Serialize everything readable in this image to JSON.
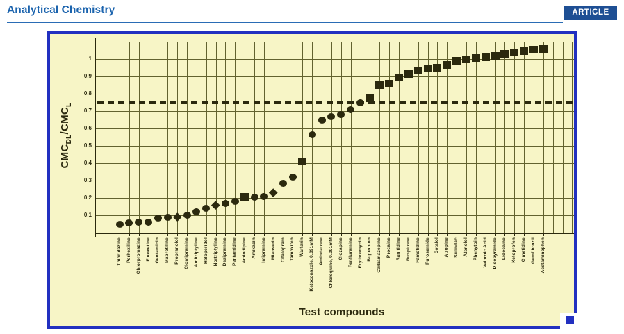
{
  "header": {
    "journal_title": "Analytical Chemistry",
    "badge_label": "ARTICLE"
  },
  "figure": {
    "y_axis_title": {
      "base1": "CMC",
      "sub1": "DL",
      "base2": "/CMC",
      "sub2": "L"
    },
    "x_axis_title": "Test compounds",
    "y_tick_labels": [
      "1",
      "0.9",
      "0.8",
      "0.7",
      "0.6",
      "0.5",
      "0.4",
      "0.3",
      "0.2",
      "0.1"
    ]
  },
  "colors": {
    "header_blue": "#1c64ae",
    "badge_bg": "#1e4f94",
    "figure_border": "#2230c0",
    "figure_bg": "#f7f5c6",
    "ink": "#2b290e",
    "grid": "#62622f"
  },
  "chart_data": {
    "type": "scatter",
    "title": "",
    "xlabel": "Test compounds",
    "ylabel": "CMC_DL/CMC_L",
    "ylim": [
      0,
      1.1
    ],
    "y_tick_step": 0.1,
    "grid": true,
    "threshold_line": {
      "y": 0.75,
      "style": "dashed"
    },
    "points": [
      {
        "label": "Thioridazine",
        "value": 0.05,
        "marker": "circle"
      },
      {
        "label": "Perhexiline",
        "value": 0.055,
        "marker": "circle"
      },
      {
        "label": "Chlorpromazine",
        "value": 0.06,
        "marker": "circle"
      },
      {
        "label": "Fluoxetine",
        "value": 0.06,
        "marker": "circle"
      },
      {
        "label": "Gentamicin",
        "value": 0.085,
        "marker": "circle"
      },
      {
        "label": "Maprotiline",
        "value": 0.088,
        "marker": "circle"
      },
      {
        "label": "Propranolol",
        "value": 0.09,
        "marker": "diamond"
      },
      {
        "label": "Clomipramine",
        "value": 0.1,
        "marker": "circle"
      },
      {
        "label": "Amitriptyline",
        "value": 0.12,
        "marker": "circle"
      },
      {
        "label": "Haloperidol",
        "value": 0.14,
        "marker": "circle"
      },
      {
        "label": "Nortriptyline",
        "value": 0.16,
        "marker": "diamond"
      },
      {
        "label": "Desipramine",
        "value": 0.17,
        "marker": "circle"
      },
      {
        "label": "Pentamidine",
        "value": 0.18,
        "marker": "circle"
      },
      {
        "label": "Amlodipine",
        "value": 0.205,
        "marker": "square"
      },
      {
        "label": "Amikacin",
        "value": 0.205,
        "marker": "circle"
      },
      {
        "label": "Imipramine",
        "value": 0.21,
        "marker": "circle"
      },
      {
        "label": "Mianserin",
        "value": 0.23,
        "marker": "diamond"
      },
      {
        "label": "Citalopram",
        "value": 0.285,
        "marker": "circle"
      },
      {
        "label": "Tamoxifen",
        "value": 0.32,
        "marker": "circle"
      },
      {
        "label": "Warfarin",
        "value": 0.41,
        "marker": "square"
      },
      {
        "label": "Ketoconazole, 0.091mM",
        "value": 0.565,
        "marker": "circle"
      },
      {
        "label": "Amiodarone",
        "value": 0.65,
        "marker": "circle"
      },
      {
        "label": "Chloroquine, 0.091mM",
        "value": 0.67,
        "marker": "circle"
      },
      {
        "label": "Clozapine",
        "value": 0.68,
        "marker": "circle"
      },
      {
        "label": "Fenfluramine",
        "value": 0.71,
        "marker": "circle"
      },
      {
        "label": "Erythromycin",
        "value": 0.75,
        "marker": "circle"
      },
      {
        "label": "Bupropion",
        "value": 0.775,
        "marker": "square"
      },
      {
        "label": "Carbamazepine",
        "value": 0.85,
        "marker": "square"
      },
      {
        "label": "Procaine",
        "value": 0.86,
        "marker": "square"
      },
      {
        "label": "Ranitidine",
        "value": 0.895,
        "marker": "square"
      },
      {
        "label": "Buspirone",
        "value": 0.915,
        "marker": "square"
      },
      {
        "label": "Famotidine",
        "value": 0.935,
        "marker": "square"
      },
      {
        "label": "Furosemide",
        "value": 0.945,
        "marker": "square"
      },
      {
        "label": "Sotalol",
        "value": 0.95,
        "marker": "square"
      },
      {
        "label": "Atropine",
        "value": 0.965,
        "marker": "square"
      },
      {
        "label": "Sulindac",
        "value": 0.99,
        "marker": "square"
      },
      {
        "label": "Atenolol",
        "value": 1.0,
        "marker": "square"
      },
      {
        "label": "Phenytoin",
        "value": 1.005,
        "marker": "square"
      },
      {
        "label": "Valproic Acid",
        "value": 1.01,
        "marker": "square"
      },
      {
        "label": "Disopyramide",
        "value": 1.02,
        "marker": "square"
      },
      {
        "label": "Lidocaine",
        "value": 1.03,
        "marker": "square"
      },
      {
        "label": "Ketoprofen",
        "value": 1.04,
        "marker": "square"
      },
      {
        "label": "Cimetidine",
        "value": 1.045,
        "marker": "square"
      },
      {
        "label": "Gemfibrozil",
        "value": 1.055,
        "marker": "square"
      },
      {
        "label": "Acetaminophen",
        "value": 1.06,
        "marker": "square"
      }
    ]
  }
}
